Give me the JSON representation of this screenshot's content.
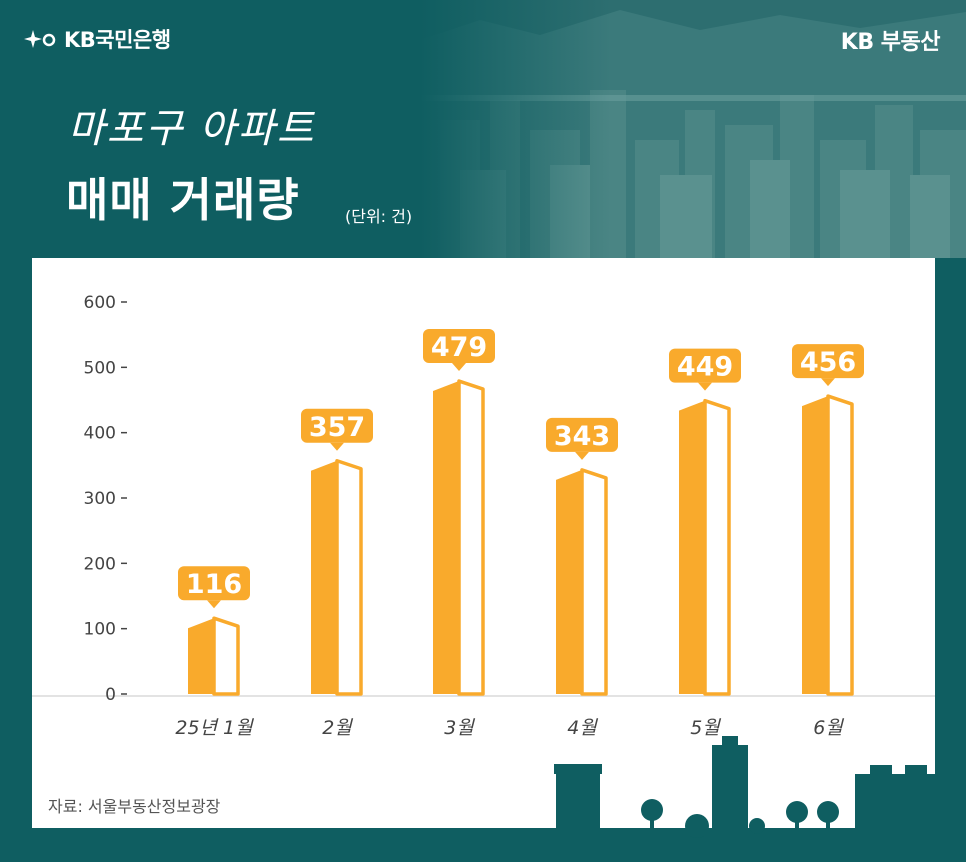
{
  "header": {
    "bank_logo_text": "KB국민은행",
    "brand_text": "KB 부동산",
    "title_line1": "마포구 아파트",
    "title_line2": "매매 거래량",
    "unit": "(단위: 건)"
  },
  "footer": {
    "source": "자료: 서울부동산정보광장"
  },
  "colors": {
    "background": "#0f5e61",
    "bar": "#f9aa2c",
    "panel": "#ffffff",
    "axis_text": "#444444"
  },
  "chart_data": {
    "type": "bar",
    "title": "마포구 아파트 매매 거래량",
    "unit": "(단위: 건)",
    "categories": [
      "25년 1월",
      "2월",
      "3월",
      "4월",
      "5월",
      "6월"
    ],
    "values": [
      116,
      357,
      479,
      343,
      449,
      456
    ],
    "ylim": [
      0,
      600
    ],
    "yticks": [
      0,
      100,
      200,
      300,
      400,
      500,
      600
    ],
    "grid": false,
    "data_labels": true
  }
}
